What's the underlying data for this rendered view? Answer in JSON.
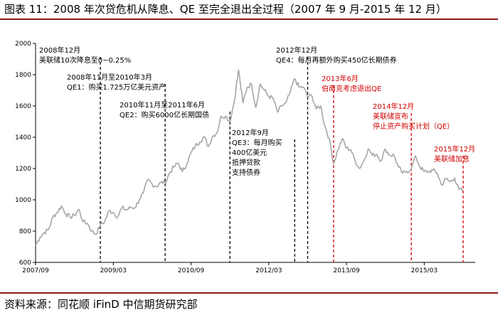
{
  "header": {
    "title": "图表 11：2008 年次贷危机从降息、QE 至完全退出全过程（2007 年 9 月-2015 年 12 月）"
  },
  "footer": {
    "source": "资料来源：同花顺 iFinD 中信期货研究部"
  },
  "colors": {
    "line": "#a6a6a6",
    "axis": "#000000",
    "event_black": "#000000",
    "event_red": "#d10000",
    "rule": "#8b1a1a"
  },
  "chart_data": {
    "type": "line",
    "title": "",
    "xlabel": "",
    "ylabel": "",
    "x_range": [
      "2007-09",
      "2015-12"
    ],
    "ylim": [
      600,
      2000
    ],
    "y_ticks": [
      600,
      800,
      1000,
      1200,
      1400,
      1600,
      1800,
      2000
    ],
    "x_ticks": [
      "2007/09",
      "2009/03",
      "2010/09",
      "2012/03",
      "2013/09",
      "2015/03"
    ],
    "grid": false,
    "legend": "none",
    "series": [
      {
        "name": "",
        "points": [
          [
            "2007-09",
            710
          ],
          [
            "2007-10",
            760
          ],
          [
            "2007-11",
            790
          ],
          [
            "2007-12",
            810
          ],
          [
            "2008-01",
            890
          ],
          [
            "2008-02",
            920
          ],
          [
            "2008-03",
            960
          ],
          [
            "2008-04",
            910
          ],
          [
            "2008-05",
            890
          ],
          [
            "2008-06",
            900
          ],
          [
            "2008-07",
            940
          ],
          [
            "2008-08",
            860
          ],
          [
            "2008-09",
            850
          ],
          [
            "2008-10",
            800
          ],
          [
            "2008-11",
            780
          ],
          [
            "2008-12",
            840
          ],
          [
            "2009-01",
            860
          ],
          [
            "2009-02",
            930
          ],
          [
            "2009-03",
            920
          ],
          [
            "2009-04",
            890
          ],
          [
            "2009-05",
            950
          ],
          [
            "2009-06",
            935
          ],
          [
            "2009-07",
            950
          ],
          [
            "2009-08",
            950
          ],
          [
            "2009-09",
            1000
          ],
          [
            "2009-10",
            1045
          ],
          [
            "2009-11",
            1130
          ],
          [
            "2009-12",
            1100
          ],
          [
            "2010-01",
            1085
          ],
          [
            "2010-02",
            1110
          ],
          [
            "2010-03",
            1110
          ],
          [
            "2010-04",
            1170
          ],
          [
            "2010-05",
            1210
          ],
          [
            "2010-06",
            1235
          ],
          [
            "2010-07",
            1180
          ],
          [
            "2010-08",
            1230
          ],
          [
            "2010-09",
            1300
          ],
          [
            "2010-10",
            1345
          ],
          [
            "2010-11",
            1370
          ],
          [
            "2010-12",
            1405
          ],
          [
            "2011-01",
            1340
          ],
          [
            "2011-02",
            1405
          ],
          [
            "2011-03",
            1430
          ],
          [
            "2011-04",
            1535
          ],
          [
            "2011-05",
            1535
          ],
          [
            "2011-06",
            1500
          ],
          [
            "2011-07",
            1630
          ],
          [
            "2011-08",
            1830
          ],
          [
            "2011-09",
            1620
          ],
          [
            "2011-10",
            1720
          ],
          [
            "2011-11",
            1740
          ],
          [
            "2011-12",
            1590
          ],
          [
            "2012-01",
            1740
          ],
          [
            "2012-02",
            1700
          ],
          [
            "2012-03",
            1660
          ],
          [
            "2012-04",
            1650
          ],
          [
            "2012-05",
            1560
          ],
          [
            "2012-06",
            1600
          ],
          [
            "2012-07",
            1620
          ],
          [
            "2012-08",
            1690
          ],
          [
            "2012-09",
            1775
          ],
          [
            "2012-10",
            1720
          ],
          [
            "2012-11",
            1720
          ],
          [
            "2012-12",
            1660
          ],
          [
            "2013-01",
            1665
          ],
          [
            "2013-02",
            1580
          ],
          [
            "2013-03",
            1600
          ],
          [
            "2013-04",
            1470
          ],
          [
            "2013-05",
            1390
          ],
          [
            "2013-06",
            1230
          ],
          [
            "2013-07",
            1320
          ],
          [
            "2013-08",
            1390
          ],
          [
            "2013-09",
            1330
          ],
          [
            "2013-10",
            1320
          ],
          [
            "2013-11",
            1250
          ],
          [
            "2013-12",
            1200
          ],
          [
            "2014-01",
            1250
          ],
          [
            "2014-02",
            1325
          ],
          [
            "2014-03",
            1285
          ],
          [
            "2014-04",
            1290
          ],
          [
            "2014-05",
            1250
          ],
          [
            "2014-06",
            1325
          ],
          [
            "2014-07",
            1285
          ],
          [
            "2014-08",
            1285
          ],
          [
            "2014-09",
            1210
          ],
          [
            "2014-10",
            1170
          ],
          [
            "2014-11",
            1180
          ],
          [
            "2014-12",
            1200
          ],
          [
            "2015-01",
            1280
          ],
          [
            "2015-02",
            1210
          ],
          [
            "2015-03",
            1180
          ],
          [
            "2015-04",
            1180
          ],
          [
            "2015-05",
            1190
          ],
          [
            "2015-06",
            1170
          ],
          [
            "2015-07",
            1095
          ],
          [
            "2015-08",
            1135
          ],
          [
            "2015-09",
            1115
          ],
          [
            "2015-10",
            1140
          ],
          [
            "2015-11",
            1065
          ],
          [
            "2015-12",
            1060
          ]
        ]
      }
    ],
    "events": [
      {
        "date": "2008-12",
        "color": "black",
        "lines": [
          "2008年12月",
          "美联储10次降息至0~0.25%"
        ]
      },
      {
        "date": "2010-03",
        "color": "black",
        "lines": [
          "2008年11月至2010年3月",
          "QE1：购买1.725万亿美元资产"
        ]
      },
      {
        "date": "2011-06",
        "color": "black",
        "lines": [
          "2010年11月至2011年6月",
          "QE2：购买6000亿长期国债"
        ]
      },
      {
        "date": "2012-09",
        "color": "black",
        "lines": [
          "2012年9月",
          "QE3：每月购买",
          "400亿美元",
          "抵押贷款",
          "支持债券"
        ]
      },
      {
        "date": "2012-12",
        "color": "black",
        "lines": [
          "2012年12月",
          "QE4：每月再额外购买450亿长期债券"
        ]
      },
      {
        "date": "2013-06",
        "color": "red",
        "lines": [
          "2013年6月",
          "伯南克考虑退出QE"
        ]
      },
      {
        "date": "2014-12",
        "color": "red",
        "lines": [
          "2014年12月",
          "美联储宣布",
          "停止资产购买计划（QE）"
        ]
      },
      {
        "date": "2015-12",
        "color": "red",
        "lines": [
          "2015年12月",
          "美联储加息"
        ]
      }
    ]
  }
}
